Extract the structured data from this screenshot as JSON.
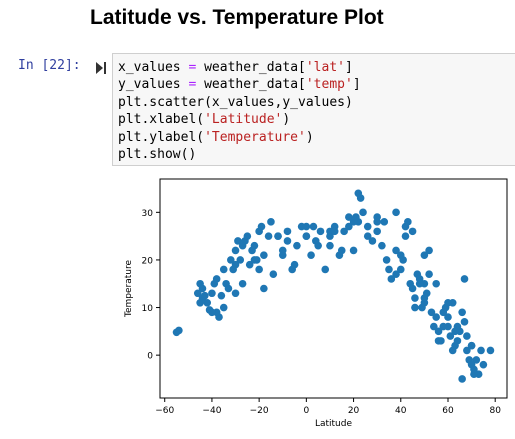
{
  "notebook": {
    "heading": "Latitude vs. Temperature Plot",
    "cell": {
      "prompt": "In [22]:",
      "run_icon": "run-cell-icon",
      "code_lines": [
        [
          {
            "t": "x_values "
          },
          {
            "t": "=",
            "c": "o"
          },
          {
            "t": " weather_data["
          },
          {
            "t": "'lat'",
            "c": "s"
          },
          {
            "t": "]"
          }
        ],
        [
          {
            "t": "y_values "
          },
          {
            "t": "=",
            "c": "o"
          },
          {
            "t": " weather_data["
          },
          {
            "t": "'temp'",
            "c": "s"
          },
          {
            "t": "]"
          }
        ],
        [
          {
            "t": "plt.scatter(x_values,y_values)"
          }
        ],
        [
          {
            "t": "plt.xlabel("
          },
          {
            "t": "'Latitude'",
            "c": "s"
          },
          {
            "t": ")"
          }
        ],
        [
          {
            "t": "plt.ylabel("
          },
          {
            "t": "'Temperature'",
            "c": "s"
          },
          {
            "t": ")"
          }
        ],
        [
          {
            "t": "plt.show()"
          }
        ]
      ]
    }
  },
  "colors": {
    "prompt": "#303f9f",
    "marker": "#1f77b4",
    "string": "#ba2121",
    "operator": "#aa22ff"
  },
  "chart_data": {
    "type": "scatter",
    "title": "",
    "xlabel": "Latitude",
    "ylabel": "Temperature",
    "xlim": [
      -62,
      85
    ],
    "ylim": [
      -9,
      37
    ],
    "xticks": [
      -60,
      -40,
      -20,
      0,
      20,
      40,
      60,
      80
    ],
    "yticks": [
      0,
      10,
      20,
      30
    ],
    "xtick_labels": [
      "−60",
      "−40",
      "−20",
      "0",
      "20",
      "40",
      "60",
      "80"
    ],
    "ytick_labels": [
      "0",
      "10",
      "20",
      "30"
    ],
    "grid": false,
    "legend": "none",
    "series": [
      {
        "x": [
          -55,
          -54,
          -46,
          -45,
          -44,
          -43,
          -42,
          -41,
          -40,
          -39,
          -38,
          -37,
          -36,
          -35,
          -34,
          -33,
          -32,
          -31,
          -30,
          -29,
          -28,
          -27,
          -26,
          -25,
          -24,
          -23,
          -22,
          -21,
          -20,
          -19,
          -18,
          -16,
          -15,
          -14,
          -12,
          -10,
          -8,
          -6,
          -4,
          -2,
          0,
          2,
          4,
          6,
          8,
          10,
          12,
          14,
          16,
          18,
          20,
          22,
          24,
          26,
          28,
          30,
          32,
          34,
          36,
          38,
          40,
          41,
          42,
          43,
          44,
          45,
          46,
          47,
          48,
          49,
          50,
          51,
          52,
          53,
          54,
          55,
          56,
          57,
          58,
          59,
          60,
          61,
          62,
          63,
          64,
          65,
          66,
          67,
          68,
          69,
          70,
          71,
          72,
          73,
          74,
          78,
          -44,
          -38,
          -35,
          -30,
          -22,
          -12,
          -5,
          0,
          5,
          10,
          15,
          22,
          30,
          38,
          45,
          50,
          55,
          60,
          64,
          68,
          70,
          -40,
          -30,
          -20,
          -10,
          0,
          10,
          20,
          30,
          40,
          50,
          60,
          70,
          23,
          21,
          35,
          38,
          46,
          50,
          56,
          62,
          66,
          71,
          75,
          -45,
          -27,
          -18,
          -8,
          3,
          12,
          18,
          26,
          33,
          42,
          48,
          52,
          58,
          63,
          67
        ],
        "y": [
          4.8,
          5.2,
          13,
          15,
          12,
          12.5,
          11,
          9.5,
          13,
          15,
          16,
          8,
          12.5,
          18,
          15,
          14,
          20,
          18,
          22,
          24,
          20,
          23,
          24,
          25,
          19,
          22,
          23,
          20,
          26,
          27,
          21,
          25,
          28,
          17,
          25,
          21,
          26,
          18,
          23,
          27,
          25,
          21,
          24,
          26,
          18,
          25,
          27,
          21,
          26,
          29,
          22,
          34,
          30,
          27,
          24,
          28,
          23,
          20,
          16,
          22,
          18,
          20,
          27,
          28,
          15,
          14,
          12,
          17,
          16,
          10,
          11,
          13,
          17,
          9,
          6,
          8,
          5,
          3,
          9,
          10,
          6,
          4,
          11,
          2,
          3,
          5,
          9,
          7,
          1,
          -1,
          2,
          -3,
          -1,
          -4,
          1,
          1,
          14,
          9,
          10,
          19,
          20,
          25,
          19,
          25,
          23,
          23,
          22,
          28,
          26,
          30,
          26,
          21,
          15,
          11,
          6,
          4,
          2,
          9,
          13,
          18,
          22,
          27,
          26,
          28,
          29,
          21,
          15,
          8,
          -2,
          33,
          29,
          18,
          17,
          10,
          12,
          3,
          1,
          -5,
          -4,
          -2,
          11,
          15,
          14,
          24,
          27,
          26,
          27,
          25,
          28,
          25,
          15,
          22,
          6,
          5,
          16
        ]
      }
    ]
  }
}
